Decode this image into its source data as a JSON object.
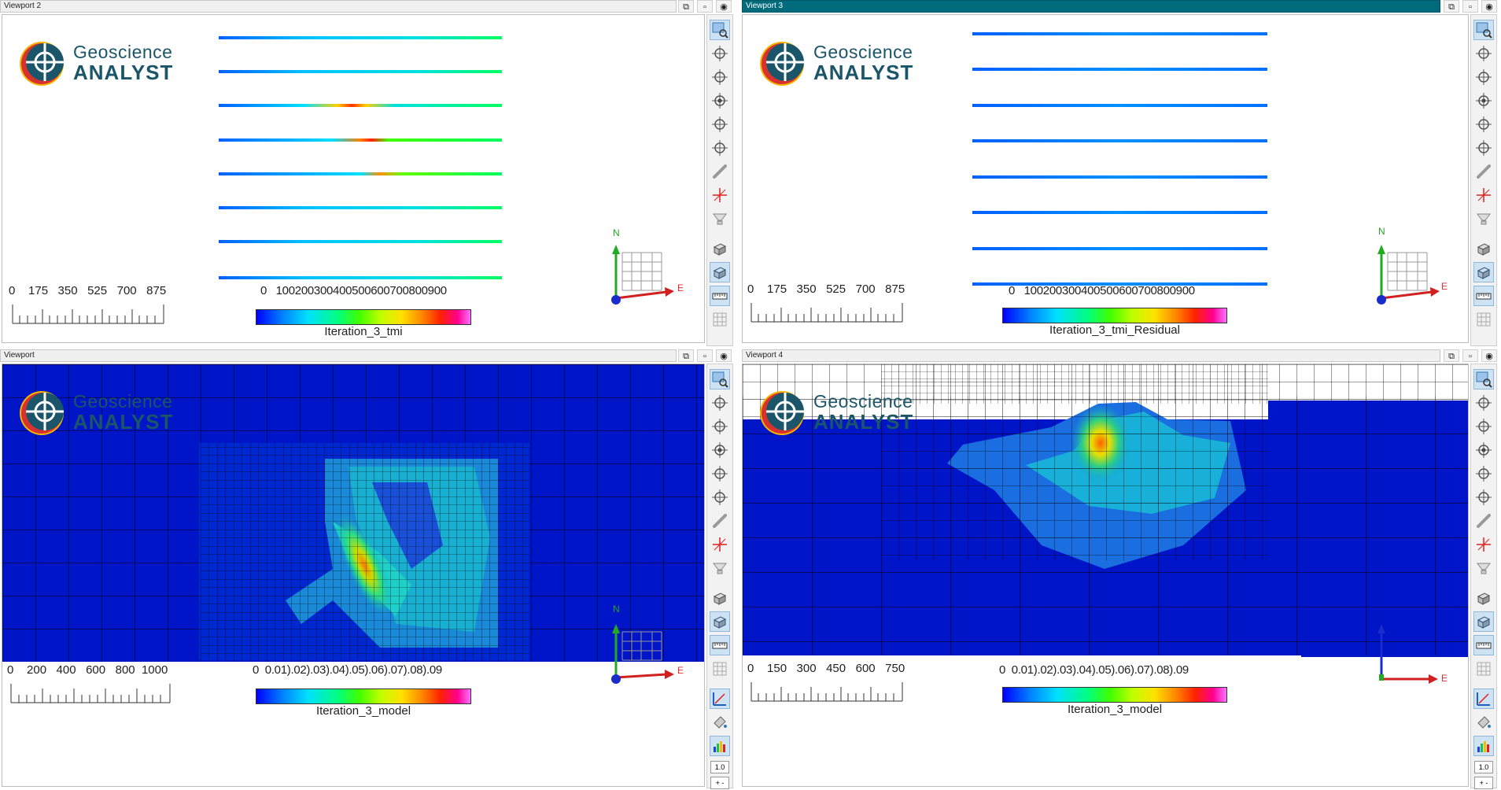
{
  "viewports": [
    {
      "title": "Viewport 2",
      "active": false,
      "logo": {
        "top": "Geoscience",
        "bottom": "ANALYST"
      },
      "scale_labels": "0    175   350   525   700   875",
      "colorbar": {
        "ticks": "0   100200300400500600700800900",
        "label": "Iteration_3_tmi"
      },
      "axis": {
        "n": "N",
        "e": "E"
      }
    },
    {
      "title": "Viewport 3",
      "active": true,
      "logo": {
        "top": "Geoscience",
        "bottom": "ANALYST"
      },
      "scale_labels": "0    175   350   525   700   875",
      "colorbar": {
        "ticks": "0   100200300400500600700800900",
        "label": "Iteration_3_tmi_Residual"
      },
      "axis": {
        "n": "N",
        "e": "E"
      }
    },
    {
      "title": "Viewport",
      "active": false,
      "logo": {
        "top": "Geoscience",
        "bottom": "ANALYST"
      },
      "scale_labels": "0    200   400   600   800  1000",
      "colorbar": {
        "ticks": "0  0.01).02).03).04).05).06).07).08).09",
        "label": "Iteration_3_model"
      },
      "axis": {
        "n": "N",
        "e": "E"
      },
      "zoom": "1.0"
    },
    {
      "title": "Viewport 4",
      "active": false,
      "logo": {
        "top": "Geoscience",
        "bottom": "ANALYST"
      },
      "scale_labels": "0    150   300   450   600   750",
      "colorbar": {
        "ticks": "0  0.01).02).03).04).05).06).07).08).09",
        "label": "Iteration_3_model"
      },
      "axis": {
        "n": "",
        "e": "E"
      },
      "zoom": "1.0"
    }
  ],
  "window_buttons": [
    "restore-icon",
    "maximize-icon",
    "eye-icon"
  ],
  "toolbar_tools": [
    "zoom-extents-icon",
    "view-top-icon",
    "view-front-icon",
    "view-side-icon",
    "view-iso-icon",
    "view-rotate-icon",
    "link-icon",
    "crosshair-icon",
    "filter-icon",
    "box-icon",
    "box-outline-icon",
    "ruler-icon",
    "grid-icon",
    "axis-icon",
    "fill-icon",
    "histogram-icon"
  ],
  "colors": {
    "accent": "#006b7a",
    "model_background": "#0014c8",
    "logo": "#1b5569"
  }
}
